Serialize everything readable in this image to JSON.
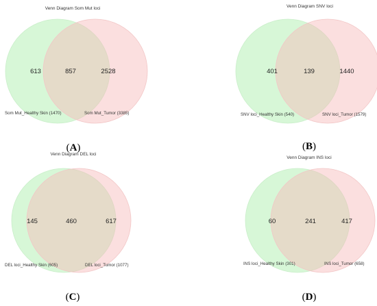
{
  "panels": [
    {
      "title": "Venn Diagram Som Mut loci",
      "left_only": "613",
      "both": "857",
      "right_only": "2528",
      "left_label": "Som Mut_Healthy Skin (1470)",
      "right_label": "Som Mut_Tumor (3385)",
      "letter": "A"
    },
    {
      "title": "Venn Diagram SNV loci",
      "left_only": "401",
      "both": "139",
      "right_only": "1440",
      "left_label": "SNV loci_Healthy Skin (540)",
      "right_label": "SNV loci_Tumor (1579)",
      "letter": "B"
    },
    {
      "title": "Venn Diagram DEL loci",
      "left_only": "145",
      "both": "460",
      "right_only": "617",
      "left_label": "DEL loci_Healthy Skin (605)",
      "right_label": "DEL loci_Tumor (1077)",
      "letter": "C"
    },
    {
      "title": "Venn Diagram INS loci",
      "left_only": "60",
      "both": "241",
      "right_only": "417",
      "left_label": "INS loci_Healthy Skin (301)",
      "right_label": "INS loci_Tumor (658)",
      "letter": "D"
    }
  ],
  "colors": {
    "healthy_fill": "#a6eda6",
    "tumor_fill": "#f7b8b8",
    "healthy_stroke": "#c9eec9",
    "tumor_stroke": "#f2c6c6"
  }
}
